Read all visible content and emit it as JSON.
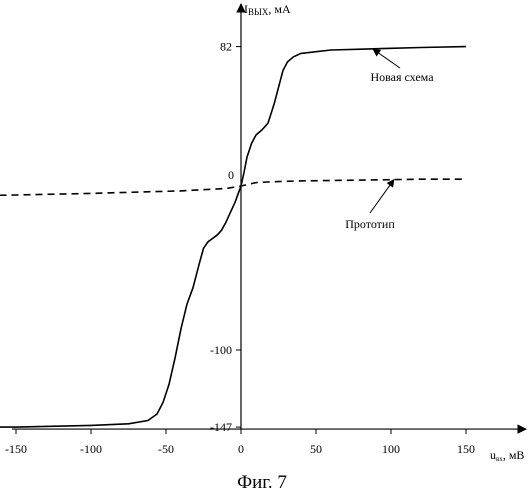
{
  "chart_data": {
    "type": "line",
    "caption": "Фиг. 7",
    "xlabel": "u",
    "xlabel_sub": "вх",
    "xlabel_unit": ", мВ",
    "ylabel": "I",
    "ylabel_sub": "ВЫХ",
    "ylabel_unit": ", мА",
    "xlim": [
      -150,
      150
    ],
    "ylim": [
      -147,
      82
    ],
    "x_ticks": [
      "-150",
      "-100",
      "-50",
      "0",
      "50",
      "100",
      "150"
    ],
    "y_ticks": [
      "82",
      "0",
      "-100",
      "-147"
    ],
    "series": [
      {
        "name": "Новая схема",
        "style": "solid",
        "color": "#000000",
        "x": [
          -185,
          -150,
          -100,
          -75,
          -62,
          -56,
          -52,
          -48,
          -44,
          -40,
          -36,
          -32,
          -28,
          -25,
          -22,
          -19,
          -16,
          -13,
          -10,
          -7,
          -4,
          -2,
          0,
          2,
          4,
          7,
          10,
          14,
          18,
          22,
          25,
          28,
          31,
          35,
          40,
          50,
          60,
          80,
          100,
          120,
          150
        ],
        "y": [
          -147,
          -147,
          -146,
          -145,
          -143,
          -139,
          -132,
          -121,
          -105,
          -87,
          -72,
          -62,
          -48,
          -38,
          -34,
          -32,
          -30,
          -27,
          -22,
          -16,
          -10,
          -5,
          0,
          8,
          17,
          25,
          30,
          33,
          37,
          48,
          58,
          68,
          73,
          76,
          78,
          79,
          80,
          80.5,
          81,
          81.5,
          82
        ]
      },
      {
        "name": "Прототип",
        "style": "dashed",
        "color": "#000000",
        "x": [
          -185,
          -150,
          -100,
          -60,
          -40,
          -20,
          -10,
          0,
          10,
          20,
          40,
          80,
          120,
          150
        ],
        "y": [
          -6,
          -5.5,
          -4.5,
          -3.5,
          -3,
          -2,
          -1.5,
          0,
          2,
          2.5,
          3,
          3.5,
          4,
          4
        ]
      }
    ],
    "annotations": [
      {
        "text": "Новая схема",
        "series": "Новая схема"
      },
      {
        "text": "Прототип",
        "series": "Прототип"
      }
    ],
    "origin_label": "0",
    "grid": false,
    "legend": "none"
  }
}
